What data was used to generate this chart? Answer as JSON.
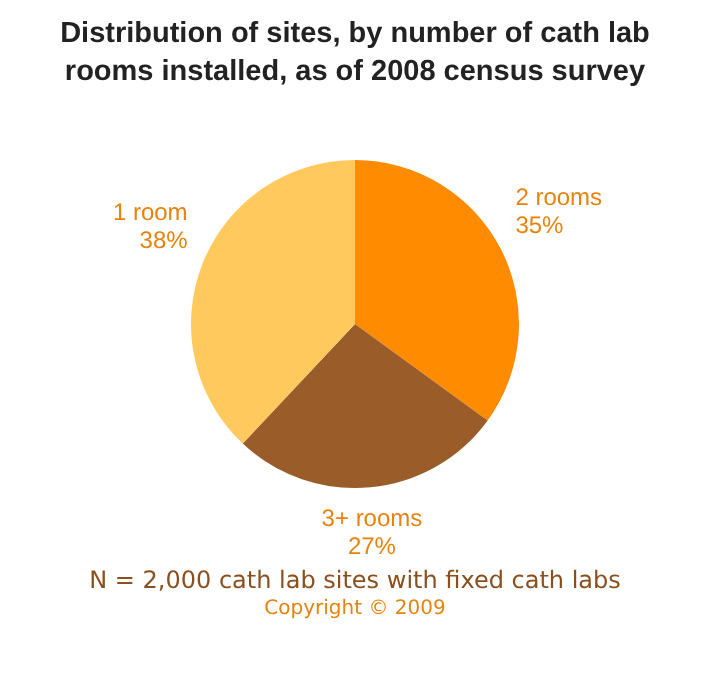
{
  "chart_data": {
    "type": "pie",
    "title": "Distribution of sites, by number of cath lab rooms installed, as of 2008 census survey",
    "categories": [
      "2 rooms",
      "3+ rooms",
      "1 room"
    ],
    "values": [
      35,
      27,
      38
    ],
    "colors": [
      "#ff8c00",
      "#9a5c28",
      "#ffc95e"
    ],
    "value_labels": [
      "35%",
      "27%",
      "38%"
    ],
    "legend": false,
    "annotations": [
      "N = 2,000 cath lab sites with fixed cath labs",
      "Copyright © 2009"
    ]
  }
}
